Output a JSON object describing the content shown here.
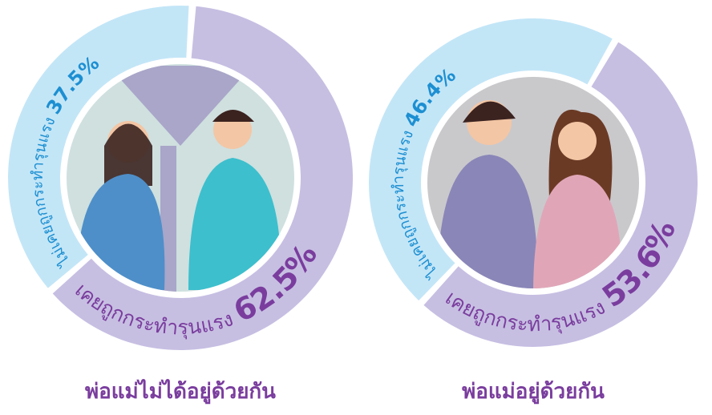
{
  "chart_data": [
    {
      "type": "donut",
      "title": "พ่อแม่ไม่ได้อยู่ด้วยกัน",
      "categories": [
        "ไม่เคยถูกกระทำรุนแรง",
        "เคยถูกกระทำรุนแรง"
      ],
      "values": [
        37.5,
        62.5
      ],
      "value_labels": [
        "37.5%",
        "62.5%"
      ],
      "colors": [
        "#c3e6f7",
        "#c7bfe2"
      ]
    },
    {
      "type": "donut",
      "title": "พ่อแม่อยู่ด้วยกัน",
      "categories": [
        "ไม่เคยถูกกระทำรุนแรง",
        "เคยถูกกระทำรุนแรง"
      ],
      "values": [
        46.4,
        53.6
      ],
      "value_labels": [
        "46.4%",
        "53.6%"
      ],
      "colors": [
        "#c3e6f7",
        "#c7bfe2"
      ]
    }
  ]
}
